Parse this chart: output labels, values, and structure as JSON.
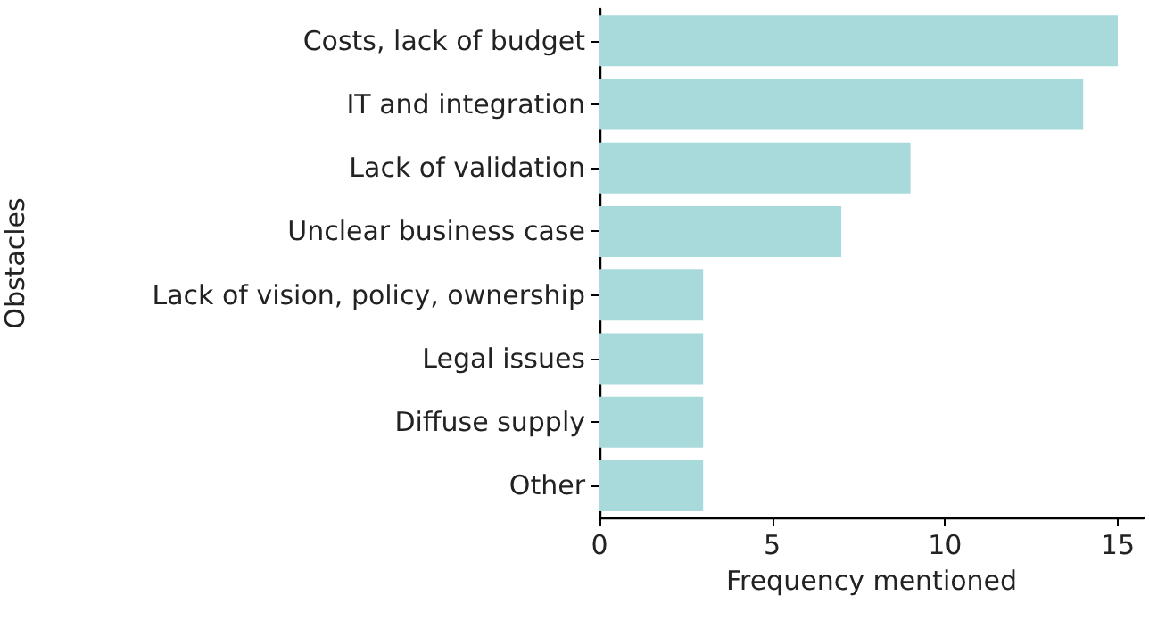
{
  "chart_data": {
    "type": "bar",
    "orientation": "horizontal",
    "xlabel": "Frequency mentioned",
    "ylabel": "Obstacles",
    "categories": [
      "Costs, lack of budget",
      "IT and integration",
      "Lack of validation",
      "Unclear business case",
      "Lack of vision, policy, ownership",
      "Legal issues",
      "Diffuse supply",
      "Other"
    ],
    "values": [
      15,
      14,
      9,
      7,
      3,
      3,
      3,
      3
    ],
    "color": "#a8dadc",
    "xlim": [
      0,
      15.75
    ],
    "xticks": [
      0,
      5,
      10,
      15
    ]
  }
}
